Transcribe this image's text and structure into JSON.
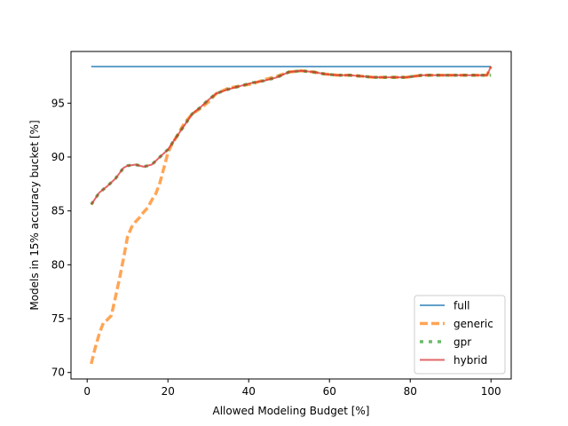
{
  "chart_data": {
    "type": "line",
    "xlabel": "Allowed Modeling Budget [%]",
    "ylabel": "Models in 15% accuracy bucket [%]",
    "xlim": [
      -4,
      105
    ],
    "ylim": [
      69.4,
      99.8
    ],
    "xticks": [
      0,
      20,
      40,
      60,
      80,
      100
    ],
    "yticks": [
      70,
      75,
      80,
      85,
      90,
      95
    ],
    "xtick_labels": [
      "0",
      "20",
      "40",
      "60",
      "80",
      "100"
    ],
    "ytick_labels": [
      "70",
      "75",
      "80",
      "85",
      "90",
      "95"
    ],
    "grid": false,
    "legend_position": "lower right",
    "series": [
      {
        "name": "full",
        "color": "#1f77b4",
        "style": "solid",
        "x": [
          1,
          100
        ],
        "y": [
          98.4,
          98.4
        ]
      },
      {
        "name": "generic",
        "color": "#ff7f0e",
        "style": "dashed",
        "x": [
          1,
          2,
          3,
          4,
          5,
          6,
          7,
          8,
          9,
          10,
          11,
          12,
          13,
          14,
          15,
          16,
          17,
          18,
          19,
          20,
          21,
          22,
          24,
          26,
          28,
          30,
          32,
          35,
          38,
          41,
          44,
          47,
          50,
          53,
          56,
          59,
          62,
          65,
          68,
          71,
          75,
          79,
          83,
          87,
          91,
          95,
          99,
          100
        ],
        "y": [
          70.8,
          72.3,
          73.6,
          74.6,
          74.9,
          75.3,
          77.0,
          78.7,
          80.6,
          82.6,
          83.5,
          84.0,
          84.4,
          84.9,
          85.3,
          86.0,
          86.6,
          87.6,
          89.0,
          90.4,
          91.2,
          91.8,
          93.1,
          94.0,
          94.5,
          95.1,
          95.9,
          96.4,
          96.6,
          96.8,
          97.2,
          97.5,
          97.9,
          98.0,
          97.9,
          97.7,
          97.6,
          97.6,
          97.5,
          97.4,
          97.4,
          97.4,
          97.6,
          97.6,
          97.6,
          97.6,
          97.6,
          98.4
        ]
      },
      {
        "name": "gpr",
        "color": "#2ca02c",
        "style": "dotted",
        "x": [
          1,
          3,
          5,
          7,
          9,
          10,
          12,
          14,
          16,
          18,
          20,
          22,
          24,
          26,
          28,
          30,
          32,
          35,
          38,
          41,
          44,
          47,
          50,
          53,
          56,
          59,
          62,
          65,
          68,
          71,
          75,
          79,
          83,
          87,
          91,
          95,
          99,
          100
        ],
        "y": [
          85.6,
          86.7,
          87.3,
          88.0,
          89.0,
          89.2,
          89.3,
          89.1,
          89.3,
          90.0,
          90.7,
          91.8,
          92.9,
          94.0,
          94.6,
          95.3,
          95.9,
          96.3,
          96.6,
          96.9,
          97.1,
          97.4,
          97.9,
          98.0,
          97.9,
          97.7,
          97.6,
          97.6,
          97.5,
          97.4,
          97.4,
          97.4,
          97.6,
          97.6,
          97.6,
          97.6,
          97.6,
          97.6
        ]
      },
      {
        "name": "hybrid",
        "color": "#d62728",
        "style": "solid",
        "x": [
          1,
          3,
          5,
          7,
          9,
          10,
          12,
          14,
          16,
          18,
          20,
          22,
          24,
          26,
          28,
          30,
          32,
          35,
          38,
          41,
          44,
          47,
          50,
          53,
          56,
          59,
          62,
          65,
          68,
          71,
          75,
          79,
          83,
          87,
          91,
          95,
          99,
          100
        ],
        "y": [
          85.6,
          86.7,
          87.3,
          88.0,
          89.0,
          89.2,
          89.3,
          89.1,
          89.3,
          90.0,
          90.7,
          91.8,
          92.9,
          94.0,
          94.6,
          95.3,
          95.9,
          96.3,
          96.6,
          96.9,
          97.1,
          97.4,
          97.9,
          98.0,
          97.9,
          97.7,
          97.6,
          97.6,
          97.5,
          97.4,
          97.4,
          97.4,
          97.6,
          97.6,
          97.6,
          97.6,
          97.6,
          98.4
        ]
      }
    ]
  }
}
